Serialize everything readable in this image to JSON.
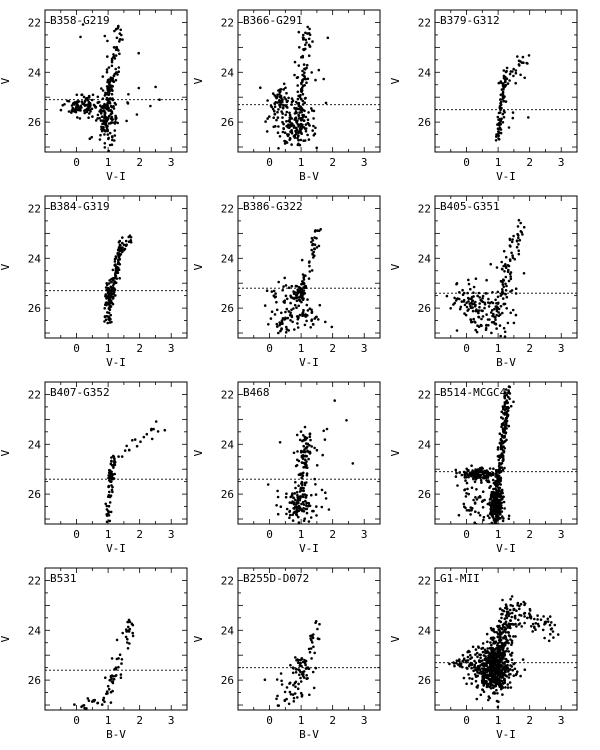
{
  "figure": {
    "columns": 3,
    "rows": 4
  },
  "chart_data": [
    {
      "type": "scatter",
      "title": "B358-G219",
      "xlabel": "V-I",
      "ylabel": "V",
      "xlim": [
        -1,
        3.5
      ],
      "ylim": [
        27.2,
        21.5
      ],
      "xticks": [
        0,
        1,
        2,
        3
      ],
      "yticks": [
        22,
        24,
        26
      ],
      "cut": 25.1,
      "seed": 11,
      "features": [
        {
          "k": "rgb",
          "n": 120,
          "xb": 0.85,
          "yb": 26.6,
          "xt": 1.35,
          "yt": 22.2,
          "sx": 0.07,
          "sy": 0.25
        },
        {
          "k": "clump",
          "n": 100,
          "x": 0.2,
          "y": 25.35,
          "sx": 0.28,
          "sy": 0.22
        },
        {
          "k": "clump",
          "n": 90,
          "x": 1.0,
          "y": 25.6,
          "sx": 0.15,
          "sy": 0.7
        },
        {
          "k": "clump",
          "n": 40,
          "x": 1.1,
          "y": 24.8,
          "sx": 0.6,
          "sy": 1.2
        }
      ]
    },
    {
      "type": "scatter",
      "title": "B366-G291",
      "xlabel": "B-V",
      "ylabel": "V",
      "xlim": [
        -1,
        3.5
      ],
      "ylim": [
        27.2,
        21.5
      ],
      "xticks": [
        0,
        1,
        2,
        3
      ],
      "yticks": [
        22,
        24,
        26
      ],
      "cut": 25.3,
      "seed": 12,
      "features": [
        {
          "k": "rgb",
          "n": 90,
          "xb": 0.85,
          "yb": 26.6,
          "xt": 1.2,
          "yt": 22.4,
          "sx": 0.08,
          "sy": 0.25
        },
        {
          "k": "clump",
          "n": 60,
          "x": 0.35,
          "y": 25.2,
          "sx": 0.15,
          "sy": 0.3
        },
        {
          "k": "clump",
          "n": 120,
          "x": 0.8,
          "y": 26.2,
          "sx": 0.35,
          "sy": 0.45
        },
        {
          "k": "clump",
          "n": 40,
          "x": 0.9,
          "y": 24.5,
          "sx": 0.4,
          "sy": 1.0
        }
      ]
    },
    {
      "type": "scatter",
      "title": "B379-G312",
      "xlabel": "V-I",
      "ylabel": "V",
      "xlim": [
        -1,
        3.5
      ],
      "ylim": [
        27.2,
        21.5
      ],
      "xticks": [
        0,
        1,
        2,
        3
      ],
      "yticks": [
        22,
        24,
        26
      ],
      "cut": 25.5,
      "seed": 13,
      "features": [
        {
          "k": "rgb",
          "n": 80,
          "xb": 1.0,
          "yb": 26.6,
          "xt": 1.25,
          "yt": 24.0,
          "sx": 0.05,
          "sy": 0.2
        },
        {
          "k": "rgb",
          "n": 20,
          "xb": 1.25,
          "yb": 24.2,
          "xt": 1.9,
          "yt": 23.5,
          "sx": 0.08,
          "sy": 0.15
        },
        {
          "k": "clump",
          "n": 10,
          "x": 1.3,
          "y": 25.0,
          "sx": 0.6,
          "sy": 1.0
        }
      ]
    },
    {
      "type": "scatter",
      "title": "B384-G319",
      "xlabel": "V-I",
      "ylabel": "V",
      "xlim": [
        -1,
        3.5
      ],
      "ylim": [
        27.2,
        21.5
      ],
      "xticks": [
        0,
        1,
        2,
        3
      ],
      "yticks": [
        22,
        24,
        26
      ],
      "cut": 25.3,
      "seed": 14,
      "features": [
        {
          "k": "rgb",
          "n": 150,
          "xb": 0.95,
          "yb": 26.6,
          "xt": 1.4,
          "yt": 23.5,
          "sx": 0.05,
          "sy": 0.2
        },
        {
          "k": "rgb",
          "n": 15,
          "xb": 1.4,
          "yb": 23.6,
          "xt": 1.8,
          "yt": 23.0,
          "sx": 0.06,
          "sy": 0.15
        },
        {
          "k": "clump",
          "n": 40,
          "x": 1.0,
          "y": 25.4,
          "sx": 0.05,
          "sy": 0.2
        }
      ]
    },
    {
      "type": "scatter",
      "title": "B386-G322",
      "xlabel": "V-I",
      "ylabel": "V",
      "xlim": [
        -1,
        3.5
      ],
      "ylim": [
        27.2,
        21.5
      ],
      "xticks": [
        0,
        1,
        2,
        3
      ],
      "yticks": [
        22,
        24,
        26
      ],
      "cut": 25.2,
      "seed": 15,
      "features": [
        {
          "k": "rgb",
          "n": 50,
          "xb": 0.95,
          "yb": 25.6,
          "xt": 1.6,
          "yt": 22.6,
          "sx": 0.06,
          "sy": 0.2
        },
        {
          "k": "clump",
          "n": 60,
          "x": 0.95,
          "y": 25.4,
          "sx": 0.12,
          "sy": 0.2
        },
        {
          "k": "clump",
          "n": 90,
          "x": 0.9,
          "y": 26.4,
          "sx": 0.45,
          "sy": 0.3
        },
        {
          "k": "clump",
          "n": 15,
          "x": 0.3,
          "y": 25.2,
          "sx": 0.2,
          "sy": 0.2
        }
      ]
    },
    {
      "type": "scatter",
      "title": "B405-G351",
      "xlabel": "B-V",
      "ylabel": "V",
      "xlim": [
        -1,
        3.5
      ],
      "ylim": [
        27.2,
        21.5
      ],
      "xticks": [
        0,
        1,
        2,
        3
      ],
      "yticks": [
        22,
        24,
        26
      ],
      "cut": 25.4,
      "seed": 16,
      "features": [
        {
          "k": "rgb",
          "n": 80,
          "xb": 0.95,
          "yb": 26.3,
          "xt": 1.7,
          "yt": 22.6,
          "sx": 0.1,
          "sy": 0.25
        },
        {
          "k": "clump",
          "n": 60,
          "x": 0.15,
          "y": 25.7,
          "sx": 0.3,
          "sy": 0.35
        },
        {
          "k": "clump",
          "n": 80,
          "x": 0.7,
          "y": 26.3,
          "sx": 0.4,
          "sy": 0.45
        },
        {
          "k": "clump",
          "n": 20,
          "x": 1.0,
          "y": 25.3,
          "sx": 0.5,
          "sy": 0.6
        }
      ]
    },
    {
      "type": "scatter",
      "title": "B407-G352",
      "xlabel": "V-I",
      "ylabel": "V",
      "xlim": [
        -1,
        3.5
      ],
      "ylim": [
        27.2,
        21.5
      ],
      "xticks": [
        0,
        1,
        2,
        3
      ],
      "yticks": [
        22,
        24,
        26
      ],
      "cut": 25.4,
      "seed": 17,
      "features": [
        {
          "k": "rgb",
          "n": 55,
          "xb": 1.0,
          "yb": 27.0,
          "xt": 1.15,
          "yt": 24.6,
          "sx": 0.05,
          "sy": 0.2
        },
        {
          "k": "rgb",
          "n": 20,
          "xb": 1.15,
          "yb": 24.6,
          "xt": 2.6,
          "yt": 23.4,
          "sx": 0.1,
          "sy": 0.2
        },
        {
          "k": "clump",
          "n": 15,
          "x": 1.1,
          "y": 25.3,
          "sx": 0.05,
          "sy": 0.15
        }
      ]
    },
    {
      "type": "scatter",
      "title": "B468",
      "xlabel": "V-I",
      "ylabel": "V",
      "xlim": [
        -1,
        3.5
      ],
      "ylim": [
        27.2,
        21.5
      ],
      "xticks": [
        0,
        1,
        2,
        3
      ],
      "yticks": [
        22,
        24,
        26
      ],
      "cut": 25.4,
      "seed": 18,
      "features": [
        {
          "k": "rgb",
          "n": 130,
          "xb": 0.9,
          "yb": 26.8,
          "xt": 1.2,
          "yt": 23.5,
          "sx": 0.1,
          "sy": 0.3
        },
        {
          "k": "clump",
          "n": 70,
          "x": 0.9,
          "y": 26.5,
          "sx": 0.35,
          "sy": 0.35
        },
        {
          "k": "clump",
          "n": 25,
          "x": 1.4,
          "y": 24.5,
          "sx": 0.5,
          "sy": 1.0
        }
      ]
    },
    {
      "type": "scatter",
      "title": "B514-MCGC4",
      "xlabel": "V-I",
      "ylabel": "V",
      "xlim": [
        -1,
        3.5
      ],
      "ylim": [
        27.2,
        21.5
      ],
      "xticks": [
        0,
        1,
        2,
        3
      ],
      "yticks": [
        22,
        24,
        26
      ],
      "cut": 25.1,
      "seed": 19,
      "features": [
        {
          "k": "rgb",
          "n": 260,
          "xb": 0.9,
          "yb": 27.0,
          "xt": 1.3,
          "yt": 22.0,
          "sx": 0.06,
          "sy": 0.25
        },
        {
          "k": "clump",
          "n": 130,
          "x": 0.4,
          "y": 25.2,
          "sx": 0.3,
          "sy": 0.15
        },
        {
          "k": "clump",
          "n": 180,
          "x": 0.95,
          "y": 26.5,
          "sx": 0.12,
          "sy": 0.4
        },
        {
          "k": "clump",
          "n": 50,
          "x": 0.2,
          "y": 26.5,
          "sx": 0.35,
          "sy": 0.5
        }
      ]
    },
    {
      "type": "scatter",
      "title": "B531",
      "xlabel": "B-V",
      "ylabel": "V",
      "xlim": [
        -1,
        3.5
      ],
      "ylim": [
        27.2,
        21.5
      ],
      "xticks": [
        0,
        1,
        2,
        3
      ],
      "yticks": [
        22,
        24,
        26
      ],
      "cut": 25.6,
      "seed": 20,
      "features": [
        {
          "k": "rgb",
          "n": 60,
          "xb": 0.95,
          "yb": 26.8,
          "xt": 1.75,
          "yt": 23.6,
          "sx": 0.08,
          "sy": 0.2
        },
        {
          "k": "clump",
          "n": 15,
          "x": 0.5,
          "y": 26.9,
          "sx": 0.35,
          "sy": 0.1
        }
      ]
    },
    {
      "type": "scatter",
      "title": "B255D-D072",
      "xlabel": "B-V",
      "ylabel": "V",
      "xlim": [
        -1,
        3.5
      ],
      "ylim": [
        27.2,
        21.5
      ],
      "xticks": [
        0,
        1,
        2,
        3
      ],
      "yticks": [
        22,
        24,
        26
      ],
      "cut": 25.5,
      "seed": 21,
      "features": [
        {
          "k": "clump",
          "n": 45,
          "x": 1.0,
          "y": 25.5,
          "sx": 0.15,
          "sy": 0.35
        },
        {
          "k": "clump",
          "n": 40,
          "x": 0.6,
          "y": 26.5,
          "sx": 0.35,
          "sy": 0.4
        },
        {
          "k": "rgb",
          "n": 20,
          "xb": 1.2,
          "yb": 25.2,
          "xt": 1.6,
          "yt": 23.5,
          "sx": 0.06,
          "sy": 0.2
        }
      ]
    },
    {
      "type": "scatter",
      "title": "G1-MII",
      "xlabel": "V-I",
      "ylabel": "V",
      "xlim": [
        -1,
        3.5
      ],
      "ylim": [
        27.2,
        21.5
      ],
      "xticks": [
        0,
        1,
        2,
        3
      ],
      "yticks": [
        22,
        24,
        26
      ],
      "cut": 25.3,
      "seed": 22,
      "features": [
        {
          "k": "clump",
          "n": 500,
          "x": 0.85,
          "y": 25.6,
          "sx": 0.3,
          "sy": 0.45
        },
        {
          "k": "rgb",
          "n": 250,
          "xb": 0.8,
          "yb": 25.5,
          "xt": 1.4,
          "yt": 23.3,
          "sx": 0.2,
          "sy": 0.35
        },
        {
          "k": "rgb",
          "n": 60,
          "xb": 1.5,
          "yb": 23.0,
          "xt": 2.8,
          "yt": 24.2,
          "sx": 0.1,
          "sy": 0.25
        },
        {
          "k": "clump",
          "n": 40,
          "x": 0.0,
          "y": 25.3,
          "sx": 0.25,
          "sy": 0.2
        }
      ]
    }
  ]
}
